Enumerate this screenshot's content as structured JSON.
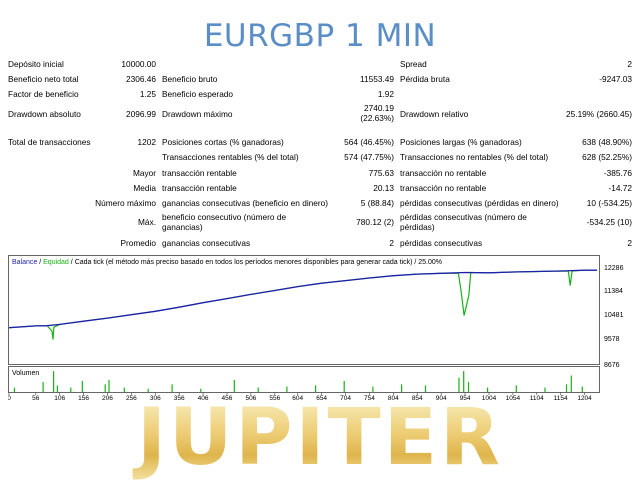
{
  "title": "EURGBP 1 MIN",
  "watermark": "JUPITER",
  "colors": {
    "title": "#5b8ec6",
    "balance": "#1f1fae",
    "equity": "#17b317",
    "volume": "#17b317",
    "watermark": "#e8c766"
  },
  "report": {
    "deposit_label": "Depósito inicial",
    "deposit": "10000.00",
    "spread_label": "Spread",
    "spread": "2",
    "net_label": "Beneficio neto total",
    "net": "2306.46",
    "gross_profit_label": "Beneficio bruto",
    "gross_profit": "11553.49",
    "gross_loss_label": "Pérdida bruta",
    "gross_loss": "-9247.03",
    "pf_label": "Factor de beneficio",
    "pf": "1.25",
    "ep_label": "Beneficio esperado",
    "ep": "1.92",
    "dd_abs_label": "Drawdown absoluto",
    "dd_abs": "2096.99",
    "dd_max_label": "Drawdown máximo",
    "dd_max_1": "2740.19",
    "dd_max_2": "(22.63%)",
    "dd_rel_label": "Drawdown relativo",
    "dd_rel": "25.19% (2660.45)",
    "trades_label": "Total de transacciones",
    "trades": "1202",
    "short_label": "Posiciones cortas (% ganadoras)",
    "short": "564 (46.45%)",
    "long_label": "Posiciones largas (% ganadoras)",
    "long": "638 (48.90%)",
    "profit_trades_label": "Transacciones rentables (% del total)",
    "profit_trades": "574 (47.75%)",
    "loss_trades_label": "Transacciones no rentables (% del total)",
    "loss_trades": "628 (52.25%)",
    "largest_label": "Mayor",
    "largest_profit_label": "transacción rentable",
    "largest_profit": "775.63",
    "largest_loss_label": "transacción no rentable",
    "largest_loss": "-385.76",
    "average_label": "Media",
    "average_profit_label": "transacción rentable",
    "average_profit": "20.13",
    "average_loss_label": "transacción no rentable",
    "average_loss": "-14.72",
    "maxnum_label": "Número máximo",
    "maxnum_wins_label": "ganancias consecutivas (beneficio en dinero)",
    "maxnum_wins": "5 (88.84)",
    "maxnum_losses_label": "pérdidas consecutivas (pérdidas en dinero)",
    "maxnum_losses": "10 (-534.25)",
    "maximal_label": "Máx.",
    "maximal_profit_label_1": "beneficio consecutivo (número de",
    "maximal_profit_label_2": "ganancias)",
    "maximal_profit": "780.12 (2)",
    "maximal_loss_label_1": "pérdidas consecutivas (número de",
    "maximal_loss_label_2": "pérdidas)",
    "maximal_loss": "-534.25 (10)",
    "avgcons_label": "Promedio",
    "avgcons_wins_label": "ganancias consecutivas",
    "avgcons_wins": "2",
    "avgcons_losses_label": "pérdidas consecutivas",
    "avgcons_losses": "2"
  },
  "chart": {
    "legend_balance": "Balance",
    "legend_sep1": " / ",
    "legend_equity": "Equidad",
    "legend_sep2": " / ",
    "legend_rest": "Cada tick (el método más preciso basado en todos los períodos menores disponibles para generar cada tick)  /  25.00%",
    "volume_label": "Volumen"
  },
  "chart_data": {
    "type": "line",
    "x_ticks": [
      "0",
      "56",
      "106",
      "156",
      "206",
      "256",
      "306",
      "356",
      "406",
      "456",
      "506",
      "556",
      "604",
      "654",
      "704",
      "754",
      "804",
      "854",
      "904",
      "954",
      "1004",
      "1054",
      "1104",
      "1154",
      "1204"
    ],
    "y_ticks": [
      "12286",
      "11384",
      "10481",
      "9578",
      "8676"
    ],
    "ylim": [
      8676,
      12286
    ],
    "xlim": [
      0,
      1230
    ],
    "series": [
      {
        "name": "Balance",
        "points": [
          [
            0,
            10030
          ],
          [
            56,
            10100
          ],
          [
            80,
            10110
          ],
          [
            106,
            10160
          ],
          [
            156,
            10280
          ],
          [
            206,
            10400
          ],
          [
            256,
            10530
          ],
          [
            306,
            10660
          ],
          [
            356,
            10820
          ],
          [
            406,
            10990
          ],
          [
            456,
            11150
          ],
          [
            506,
            11310
          ],
          [
            556,
            11460
          ],
          [
            604,
            11610
          ],
          [
            654,
            11740
          ],
          [
            704,
            11840
          ],
          [
            754,
            11940
          ],
          [
            804,
            12030
          ],
          [
            854,
            12090
          ],
          [
            904,
            12120
          ],
          [
            954,
            12150
          ],
          [
            1004,
            12140
          ],
          [
            1054,
            12170
          ],
          [
            1104,
            12190
          ],
          [
            1154,
            12210
          ],
          [
            1204,
            12240
          ],
          [
            1230,
            12240
          ]
        ]
      },
      {
        "name": "Equidad",
        "points": [
          [
            0,
            10030
          ],
          [
            56,
            10100
          ],
          [
            80,
            10110
          ],
          [
            90,
            9900
          ],
          [
            92,
            9580
          ],
          [
            94,
            10050
          ],
          [
            106,
            10160
          ],
          [
            156,
            10280
          ],
          [
            206,
            10400
          ],
          [
            256,
            10530
          ],
          [
            306,
            10660
          ],
          [
            356,
            10820
          ],
          [
            406,
            10990
          ],
          [
            456,
            11150
          ],
          [
            506,
            11310
          ],
          [
            556,
            11460
          ],
          [
            604,
            11610
          ],
          [
            654,
            11740
          ],
          [
            704,
            11840
          ],
          [
            754,
            11940
          ],
          [
            804,
            12030
          ],
          [
            854,
            12090
          ],
          [
            904,
            12120
          ],
          [
            940,
            12130
          ],
          [
            946,
            11400
          ],
          [
            952,
            10500
          ],
          [
            956,
            10800
          ],
          [
            962,
            11300
          ],
          [
            966,
            12150
          ],
          [
            1004,
            12140
          ],
          [
            1054,
            12170
          ],
          [
            1104,
            12190
          ],
          [
            1154,
            12210
          ],
          [
            1170,
            12200
          ],
          [
            1174,
            11650
          ],
          [
            1178,
            12210
          ],
          [
            1204,
            12240
          ],
          [
            1230,
            12240
          ]
        ]
      }
    ],
    "volume_spikes": [
      [
        10,
        0.2
      ],
      [
        70,
        0.45
      ],
      [
        92,
        0.95
      ],
      [
        100,
        0.3
      ],
      [
        128,
        0.2
      ],
      [
        152,
        0.5
      ],
      [
        200,
        0.35
      ],
      [
        208,
        0.55
      ],
      [
        240,
        0.2
      ],
      [
        290,
        0.15
      ],
      [
        340,
        0.35
      ],
      [
        400,
        0.15
      ],
      [
        470,
        0.55
      ],
      [
        520,
        0.2
      ],
      [
        580,
        0.25
      ],
      [
        640,
        0.3
      ],
      [
        700,
        0.5
      ],
      [
        760,
        0.25
      ],
      [
        820,
        0.35
      ],
      [
        870,
        0.3
      ],
      [
        940,
        0.65
      ],
      [
        950,
        0.95
      ],
      [
        960,
        0.45
      ],
      [
        1000,
        0.2
      ],
      [
        1060,
        0.3
      ],
      [
        1120,
        0.2
      ],
      [
        1165,
        0.35
      ],
      [
        1175,
        0.75
      ],
      [
        1198,
        0.25
      ]
    ]
  }
}
